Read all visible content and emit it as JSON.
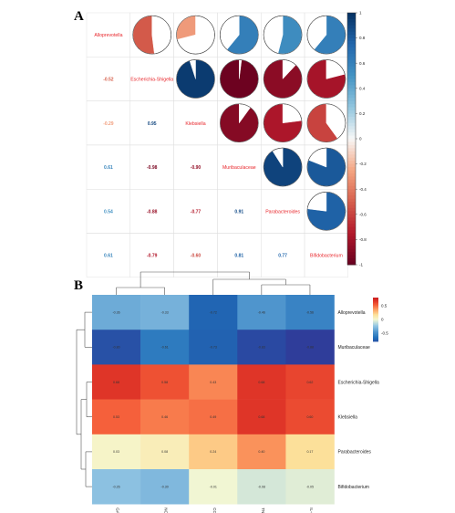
{
  "panels": {
    "a": "A",
    "b": "B"
  },
  "colors": {
    "pos_strong": "#053061",
    "pos_mid": "#2b8cbe",
    "neg_strong": "#67001f",
    "neg_mid": "#e34a33",
    "neutral": "#f7f7f7"
  },
  "chart_data": [
    {
      "type": "heatmap",
      "subtype": "correlation-matrix (upper: pie glyphs, lower: coefficients)",
      "variables": [
        "Alloprevotella",
        "Escherichia-Shigella",
        "Klebsiella",
        "Muribaculaceae",
        "Parabacteroides",
        "Bifidobacterium"
      ],
      "matrix": [
        [
          1.0,
          -0.52,
          -0.29,
          0.61,
          0.54,
          0.61
        ],
        [
          -0.52,
          1.0,
          0.95,
          -0.98,
          -0.88,
          -0.79
        ],
        [
          -0.29,
          0.95,
          1.0,
          -0.9,
          -0.77,
          -0.6
        ],
        [
          0.61,
          -0.98,
          -0.9,
          1.0,
          0.91,
          0.81
        ],
        [
          0.54,
          -0.88,
          -0.77,
          0.91,
          1.0,
          0.77
        ],
        [
          0.61,
          -0.79,
          -0.6,
          0.81,
          0.77,
          1.0
        ]
      ],
      "value_labels": [
        [
          "",
          "",
          "",
          "",
          "",
          ""
        ],
        [
          "-0.52",
          "",
          "",
          "",
          "",
          ""
        ],
        [
          "-0.29",
          "0.95",
          "",
          "",
          "",
          ""
        ],
        [
          "0.61",
          "-0.98",
          "-0.90",
          "",
          "",
          ""
        ],
        [
          "0.54",
          "-0.88",
          "-0.77",
          "0.91",
          "",
          ""
        ],
        [
          "0.61",
          "-0.79",
          "-0.60",
          "0.81",
          "0.77",
          ""
        ]
      ],
      "colorbar": {
        "range": [
          -1,
          1
        ],
        "ticks": [
          1,
          0.8,
          0.6,
          0.4,
          0.2,
          0,
          -0.2,
          -0.4,
          -0.6,
          -0.8,
          -1
        ],
        "tick_labels": [
          "1",
          "0.8",
          "0.6",
          "0.4",
          "0.2",
          "0",
          "-0.2",
          "-0.4",
          "-0.6",
          "-0.8",
          "-1"
        ],
        "placement": "right"
      }
    },
    {
      "type": "heatmap",
      "subtype": "clustered heatmap with dendrograms",
      "rows": [
        "Alloprevotella",
        "Muribaculaceae",
        "Escherichia-Shigella",
        "Klebsiella",
        "Parabacteroides",
        "Bifidobacterium"
      ],
      "columns": [
        "GAP",
        "NO",
        "COX",
        "TNF-α",
        "IL-6"
      ],
      "values": [
        [
          -0.36,
          -0.33,
          -0.72,
          -0.46,
          -0.56
        ],
        [
          -0.8,
          -0.61,
          -0.73,
          -0.83,
          -0.88
        ],
        [
          0.68,
          0.58,
          0.43,
          0.68,
          0.62
        ],
        [
          0.53,
          0.46,
          0.49,
          0.68,
          0.6
        ],
        [
          0.03,
          0.08,
          0.24,
          0.4,
          0.17
        ],
        [
          -0.26,
          -0.3,
          -0.01,
          -0.08,
          -0.05
        ]
      ],
      "value_labels": [
        [
          "-0.36",
          "-0.33",
          "-0.72",
          "-0.46",
          "-0.56"
        ],
        [
          "-0.80",
          "-0.61",
          "-0.73",
          "-0.83",
          "-0.88"
        ],
        [
          "0.68",
          "0.58",
          "0.43",
          "0.68",
          "0.62"
        ],
        [
          "0.53",
          "0.46",
          "0.49",
          "0.68",
          "0.60"
        ],
        [
          "0.03",
          "0.08",
          "0.24",
          "0.40",
          "0.17"
        ],
        [
          "-0.26",
          "-0.30",
          "-0.01",
          "-0.08",
          "-0.05"
        ]
      ],
      "colorbar": {
        "range": [
          -0.8,
          0.8
        ],
        "ticks": [
          0.5,
          0,
          -0.5
        ],
        "tick_labels": [
          "0.5",
          "0",
          "-0.5"
        ],
        "placement": "top-right"
      },
      "dendrograms": [
        "top (columns)",
        "left (rows)"
      ]
    }
  ]
}
